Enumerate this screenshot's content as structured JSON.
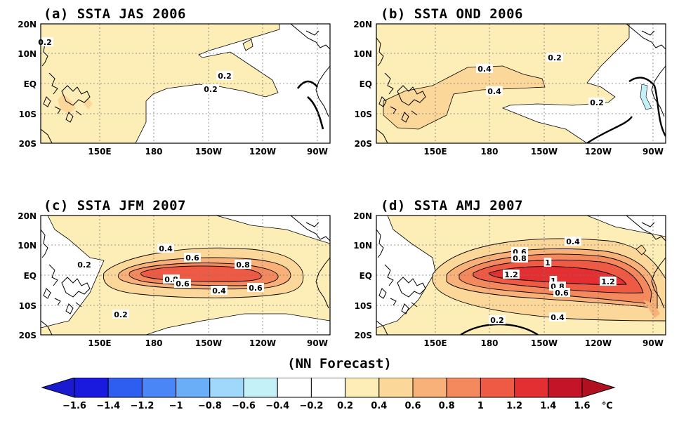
{
  "figure": {
    "footer": "(NN Forecast)",
    "unit": "℃"
  },
  "axes": {
    "lat_labels": [
      "20N",
      "10N",
      "EQ",
      "10S",
      "20S"
    ],
    "lon_labels": [
      "150E",
      "180",
      "150W",
      "120W",
      "90W"
    ]
  },
  "panels": [
    {
      "id": "a",
      "title": "(a) SSTA JAS 2006",
      "contour_labels": [
        "0.2",
        "0.2",
        "0.2"
      ]
    },
    {
      "id": "b",
      "title": "(b) SSTA OND 2006",
      "contour_labels": [
        "0.4",
        "0.4",
        "0.2",
        "0.2"
      ]
    },
    {
      "id": "c",
      "title": "(c) SSTA JFM 2007",
      "contour_labels": [
        "0.4",
        "0.6",
        "0.8",
        "0.8",
        "0.6",
        "0.4",
        "0.6",
        "0.2",
        "0.2"
      ]
    },
    {
      "id": "d",
      "title": "(d) SSTA AMJ 2007",
      "contour_labels": [
        "0.4",
        "0.6",
        "0.8",
        "1",
        "1.2",
        "1",
        "0.8",
        "0.6",
        "1.2",
        "0.2",
        "0.4"
      ]
    }
  ],
  "colorbar": {
    "levels": [
      "-1.6",
      "-1.4",
      "-1.2",
      "-1",
      "-0.8",
      "-0.6",
      "-0.4",
      "-0.2",
      "0.2",
      "0.4",
      "0.6",
      "0.8",
      "1",
      "1.2",
      "1.4",
      "1.6"
    ],
    "colors": [
      "#1a1adf",
      "#2e5ef0",
      "#4a86f5",
      "#6aaef8",
      "#9fd8fa",
      "#c4f0f8",
      "#ffffff",
      "#ffffff",
      "#fdeeb8",
      "#fcd79a",
      "#f9b17a",
      "#f5895e",
      "#ee5a44",
      "#e32f31",
      "#c41428"
    ],
    "low_color": "#1a1ad0",
    "high_color": "#b0101f"
  }
}
